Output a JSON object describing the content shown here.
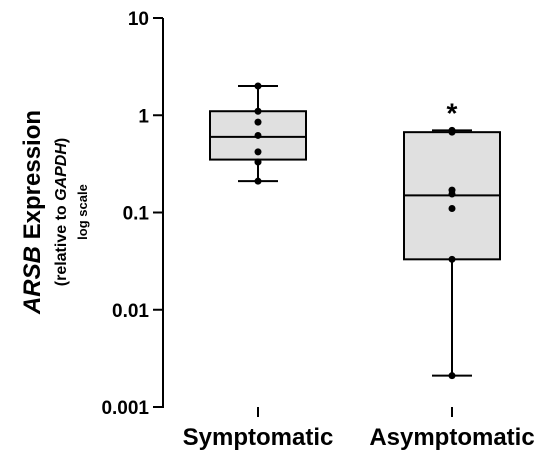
{
  "chart_data": {
    "type": "box",
    "title": "",
    "ylabel": {
      "gene": "ARSB",
      "main": " Expression",
      "sub_prefix": "(relative to ",
      "sub_ref": "GAPDH",
      "sub_suffix": ")",
      "scale_note": "log scale"
    },
    "xlabel": "",
    "yscale": "log",
    "ylim": [
      0.001,
      10
    ],
    "yticks": [
      0.001,
      0.01,
      0.1,
      1,
      10
    ],
    "ytick_labels": [
      "0.001",
      "0.01",
      "0.1",
      "1",
      "10"
    ],
    "grid": false,
    "categories": [
      "Symptomatic",
      "Asymptomatic"
    ],
    "boxes": [
      {
        "category": "Symptomatic",
        "whisker_low": 0.21,
        "q1": 0.35,
        "median": 0.6,
        "q3": 1.1,
        "whisker_high": 2.0,
        "points": [
          2.0,
          1.1,
          0.85,
          0.62,
          0.42,
          0.33,
          0.21
        ],
        "annotation": ""
      },
      {
        "category": "Asymptomatic",
        "whisker_low": 0.0021,
        "q1": 0.033,
        "median": 0.15,
        "q3": 0.67,
        "whisker_high": 0.7,
        "points": [
          0.7,
          0.67,
          0.17,
          0.155,
          0.11,
          0.033,
          0.0021
        ],
        "annotation": "*"
      }
    ],
    "box_fill": "#e0e0e0",
    "line_color": "#000000"
  }
}
